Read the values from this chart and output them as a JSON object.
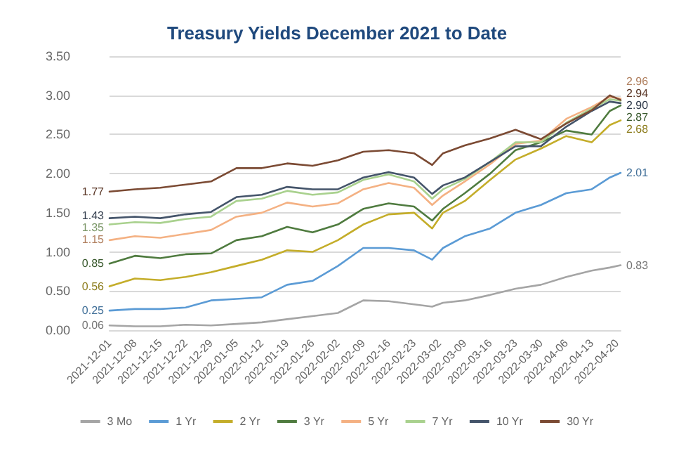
{
  "chart_data": {
    "type": "line",
    "title": "Treasury Yields December 2021 to Date",
    "x": [
      "2021-12-01",
      "2021-12-08",
      "2021-12-15",
      "2021-12-22",
      "2021-12-29",
      "2022-01-05",
      "2022-01-12",
      "2022-01-19",
      "2022-01-26",
      "2022-02-02",
      "2022-02-09",
      "2022-02-16",
      "2022-02-23",
      "2022-02-28",
      "2022-03-03",
      "2022-03-09",
      "2022-03-16",
      "2022-03-23",
      "2022-03-30",
      "2022-04-06",
      "2022-04-13",
      "2022-04-18",
      "2022-04-21"
    ],
    "xlim": [
      "2021-12-01",
      "2022-04-21"
    ],
    "xticks": [
      "2021-12-01",
      "2021-12-08",
      "2021-12-15",
      "2021-12-22",
      "2021-12-29",
      "2022-01-05",
      "2022-01-12",
      "2022-01-19",
      "2022-01-26",
      "2022-02-02",
      "2022-02-09",
      "2022-02-16",
      "2022-02-23",
      "2022-03-02",
      "2022-03-09",
      "2022-03-16",
      "2022-03-23",
      "2022-03-30",
      "2022-04-06",
      "2022-04-13",
      "2022-04-20"
    ],
    "ylim": [
      0,
      3.5
    ],
    "yticks": [
      {
        "value": 0,
        "label": "0.00"
      },
      {
        "value": 0.5,
        "label": "0.50"
      },
      {
        "value": 1,
        "label": "1.00"
      },
      {
        "value": 1.5,
        "label": "1.50"
      },
      {
        "value": 2,
        "label": "2.00"
      },
      {
        "value": 2.5,
        "label": "2.50"
      },
      {
        "value": 3,
        "label": "3.00"
      },
      {
        "value": 3.5,
        "label": "3.50"
      }
    ],
    "grid": "y",
    "legend": "bottom",
    "marker": "none",
    "line_style": "solid",
    "series": [
      {
        "name": "3 Mo",
        "color": "#a5a5a5",
        "values": [
          0.06,
          0.05,
          0.05,
          0.07,
          0.06,
          0.08,
          0.1,
          0.14,
          0.18,
          0.22,
          0.38,
          0.37,
          0.33,
          0.3,
          0.35,
          0.38,
          0.45,
          0.53,
          0.58,
          0.68,
          0.76,
          0.8,
          0.83
        ],
        "value_labels": [
          "0.06",
          null,
          null,
          null,
          null,
          null,
          null,
          null,
          null,
          null,
          null,
          null,
          null,
          null,
          null,
          null,
          null,
          null,
          null,
          null,
          null,
          null,
          "0.83"
        ]
      },
      {
        "name": "1 Yr",
        "color": "#5b9bd5",
        "values": [
          0.25,
          0.27,
          0.27,
          0.29,
          0.38,
          0.4,
          0.42,
          0.58,
          0.63,
          0.82,
          1.05,
          1.05,
          1.02,
          0.9,
          1.05,
          1.2,
          1.3,
          1.5,
          1.6,
          1.75,
          1.8,
          1.95,
          2.01
        ],
        "value_labels": [
          "0.25",
          null,
          null,
          null,
          null,
          null,
          null,
          null,
          null,
          null,
          null,
          null,
          null,
          null,
          null,
          null,
          null,
          null,
          null,
          null,
          null,
          null,
          "2.01"
        ]
      },
      {
        "name": "2 Yr",
        "color": "#c4ad2a",
        "values": [
          0.56,
          0.66,
          0.64,
          0.68,
          0.74,
          0.82,
          0.9,
          1.02,
          1.0,
          1.15,
          1.35,
          1.48,
          1.5,
          1.3,
          1.5,
          1.65,
          1.92,
          2.18,
          2.32,
          2.48,
          2.4,
          2.62,
          2.68
        ],
        "value_labels": [
          "0.56",
          null,
          null,
          null,
          null,
          null,
          null,
          null,
          null,
          null,
          null,
          null,
          null,
          null,
          null,
          null,
          null,
          null,
          null,
          null,
          null,
          null,
          "2.68"
        ]
      },
      {
        "name": "3 Yr",
        "color": "#4f7b3f",
        "values": [
          0.85,
          0.95,
          0.92,
          0.97,
          0.98,
          1.15,
          1.2,
          1.32,
          1.25,
          1.35,
          1.55,
          1.62,
          1.58,
          1.4,
          1.55,
          1.75,
          2.0,
          2.3,
          2.4,
          2.55,
          2.5,
          2.8,
          2.87
        ],
        "value_labels": [
          "0.85",
          null,
          null,
          null,
          null,
          null,
          null,
          null,
          null,
          null,
          null,
          null,
          null,
          null,
          null,
          null,
          null,
          null,
          null,
          null,
          null,
          null,
          "2.87"
        ]
      },
      {
        "name": "5 Yr",
        "color": "#f4b183",
        "values": [
          1.15,
          1.2,
          1.18,
          1.23,
          1.28,
          1.45,
          1.5,
          1.63,
          1.58,
          1.62,
          1.8,
          1.88,
          1.82,
          1.6,
          1.72,
          1.9,
          2.12,
          2.38,
          2.42,
          2.7,
          2.85,
          2.98,
          2.96
        ],
        "value_labels": [
          "1.15",
          null,
          null,
          null,
          null,
          null,
          null,
          null,
          null,
          null,
          null,
          null,
          null,
          null,
          null,
          null,
          null,
          null,
          null,
          null,
          null,
          null,
          "2.96"
        ]
      },
      {
        "name": "7 Yr",
        "color": "#a9d18e",
        "values": [
          1.35,
          1.38,
          1.37,
          1.42,
          1.45,
          1.65,
          1.68,
          1.78,
          1.73,
          1.76,
          1.92,
          1.99,
          1.9,
          1.68,
          1.8,
          1.93,
          2.15,
          2.4,
          2.4,
          2.65,
          2.83,
          2.95,
          2.93
        ],
        "value_labels": [
          "1.35",
          null,
          null,
          null,
          null,
          null,
          null,
          null,
          null,
          null,
          null,
          null,
          null,
          null,
          null,
          null,
          null,
          null,
          null,
          null,
          null,
          null,
          null
        ]
      },
      {
        "name": "10 Yr",
        "color": "#44546a",
        "values": [
          1.43,
          1.45,
          1.43,
          1.48,
          1.51,
          1.7,
          1.73,
          1.83,
          1.8,
          1.8,
          1.95,
          2.02,
          1.95,
          1.74,
          1.85,
          1.95,
          2.15,
          2.35,
          2.35,
          2.6,
          2.8,
          2.92,
          2.9
        ],
        "value_labels": [
          "1.43",
          null,
          null,
          null,
          null,
          null,
          null,
          null,
          null,
          null,
          null,
          null,
          null,
          null,
          null,
          null,
          null,
          null,
          null,
          null,
          null,
          null,
          "2.90"
        ]
      },
      {
        "name": "30 Yr",
        "color": "#7b4a33",
        "values": [
          1.77,
          1.8,
          1.82,
          1.86,
          1.9,
          2.07,
          2.07,
          2.13,
          2.1,
          2.17,
          2.28,
          2.3,
          2.26,
          2.11,
          2.26,
          2.36,
          2.45,
          2.56,
          2.44,
          2.64,
          2.81,
          3.0,
          2.94
        ],
        "value_labels": [
          "1.77",
          null,
          null,
          null,
          null,
          null,
          null,
          null,
          null,
          null,
          null,
          null,
          null,
          null,
          null,
          null,
          null,
          null,
          null,
          null,
          null,
          null,
          "2.94"
        ]
      }
    ]
  }
}
